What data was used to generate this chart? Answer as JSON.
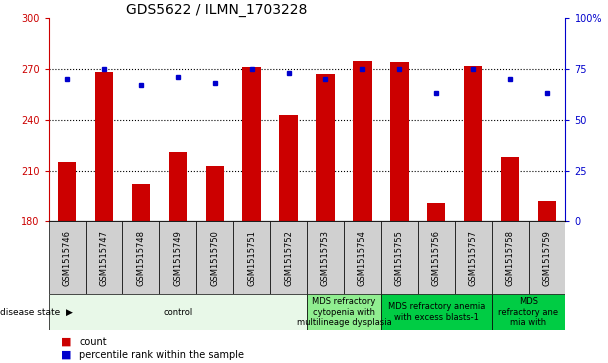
{
  "title": "GDS5622 / ILMN_1703228",
  "samples": [
    "GSM1515746",
    "GSM1515747",
    "GSM1515748",
    "GSM1515749",
    "GSM1515750",
    "GSM1515751",
    "GSM1515752",
    "GSM1515753",
    "GSM1515754",
    "GSM1515755",
    "GSM1515756",
    "GSM1515757",
    "GSM1515758",
    "GSM1515759"
  ],
  "counts": [
    215,
    268,
    202,
    221,
    213,
    271,
    243,
    267,
    275,
    274,
    191,
    272,
    218,
    192
  ],
  "percentiles": [
    70,
    75,
    67,
    71,
    68,
    75,
    73,
    70,
    75,
    75,
    63,
    75,
    70,
    63
  ],
  "ylim_left": [
    180,
    300
  ],
  "ylim_right": [
    0,
    100
  ],
  "yticks_left": [
    180,
    210,
    240,
    270,
    300
  ],
  "yticks_right": [
    0,
    25,
    50,
    75,
    100
  ],
  "bar_color": "#cc0000",
  "dot_color": "#0000cc",
  "grid_dotted_color": "#404040",
  "disease_groups": [
    {
      "label": "control",
      "start": 0,
      "end": 7,
      "color": "#e8f8e8"
    },
    {
      "label": "MDS refractory\ncytopenia with\nmultilineage dysplasia",
      "start": 7,
      "end": 9,
      "color": "#90ee90"
    },
    {
      "label": "MDS refractory anemia\nwith excess blasts-1",
      "start": 9,
      "end": 12,
      "color": "#00cc44"
    },
    {
      "label": "MDS\nrefractory ane\nmia with",
      "start": 12,
      "end": 14,
      "color": "#00cc44"
    }
  ],
  "left_axis_color": "#cc0000",
  "right_axis_color": "#0000cc",
  "title_fontsize": 10,
  "tick_fontsize": 7,
  "sample_fontsize": 6,
  "disease_fontsize": 6,
  "legend_fontsize": 7
}
